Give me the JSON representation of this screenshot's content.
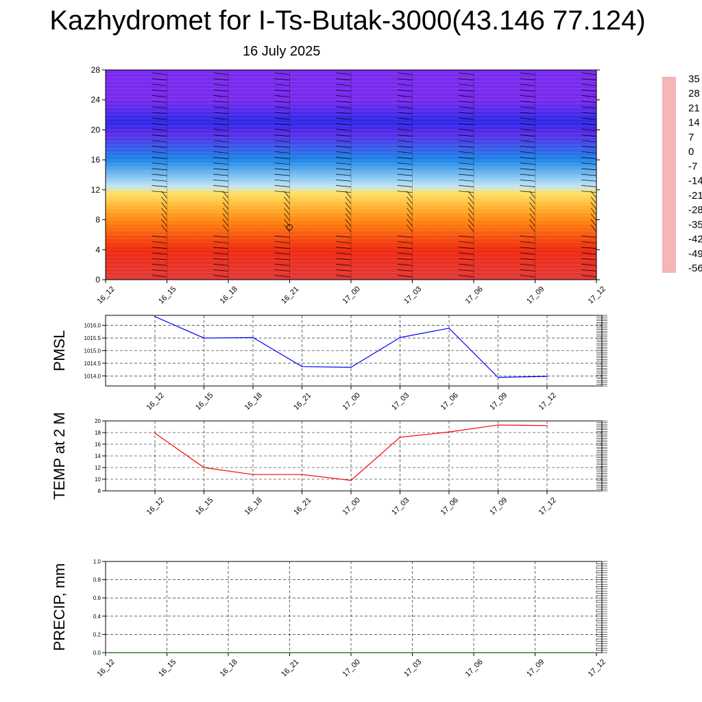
{
  "title": "Kazhydromet for I-Ts-Butak-3000(43.146 77.124)",
  "subtitle": "16 July 2025",
  "colors": {
    "pmsl_line": "#0000ff",
    "temp_line": "#ff0000",
    "precip_line": "#006400",
    "grid": "#000000"
  },
  "chart_data": [
    {
      "id": "wind_temp_profile",
      "type": "heatmap",
      "xlabel": "",
      "ylabel": "",
      "x_ticks": [
        "16_12",
        "16_15",
        "16_18",
        "16_21",
        "17_00",
        "17_03",
        "17_06",
        "17_09",
        "17_12"
      ],
      "y_ticks": [
        "0",
        "4",
        "8",
        "12",
        "16",
        "20",
        "24",
        "28"
      ],
      "ylim": [
        0,
        28
      ],
      "description_units": "height (km) vs time; shading = temperature (C); wind barbs overlaid",
      "colorbar_labels": [
        "35",
        "28",
        "21",
        "14",
        "7",
        "0",
        "-7",
        "-14",
        "-21",
        "-28",
        "-35",
        "-42",
        "-49",
        "-56"
      ],
      "colorbar_colors": [
        "#f4b6b6",
        "#e33a3a",
        "#d80000",
        "#ef2a10",
        "#f85a10",
        "#ff8a10",
        "#ffb21c",
        "#ffe060",
        "#fff6c0",
        "#bfe6f6",
        "#6cc8f2",
        "#16a8ee",
        "#1c86e8",
        "#2a5ee6",
        "#2a2ae8",
        "#5a2ae8",
        "#7a2aee"
      ],
      "temperature_by_height": [
        {
          "height": 0,
          "temp": 30
        },
        {
          "height": 4,
          "temp": 15
        },
        {
          "height": 8,
          "temp": 3
        },
        {
          "height": 11.5,
          "temp": -8
        },
        {
          "height": 12.5,
          "temp": -20
        },
        {
          "height": 16,
          "temp": -36
        },
        {
          "height": 19.5,
          "temp": -56
        },
        {
          "height": 21,
          "temp": -48
        },
        {
          "height": 24,
          "temp": -60
        },
        {
          "height": 28,
          "temp": -60
        }
      ]
    },
    {
      "id": "pmsl",
      "type": "line",
      "ylabel": "PMSL",
      "x": [
        "16_12",
        "16_15",
        "16_18",
        "16_21",
        "17_00",
        "17_03",
        "17_06",
        "17_09",
        "17_12"
      ],
      "y_ticks": [
        "1014.0",
        "1014.5",
        "1015.0",
        "1015.5",
        "1016.0"
      ],
      "ylim": [
        1013.6,
        1016.4
      ],
      "series": [
        {
          "values": [
            1016.35,
            1015.5,
            1015.52,
            1014.37,
            1014.34,
            1015.52,
            1015.89,
            1013.94,
            1013.98
          ]
        }
      ],
      "grid": true
    },
    {
      "id": "temp2m",
      "type": "line",
      "ylabel": "TEMP at 2 M",
      "x": [
        "16_12",
        "16_15",
        "16_18",
        "16_21",
        "17_00",
        "17_03",
        "17_06",
        "17_09",
        "17_12"
      ],
      "y_ticks": [
        "8",
        "10",
        "12",
        "14",
        "16",
        "18",
        "20"
      ],
      "ylim": [
        8,
        20
      ],
      "series": [
        {
          "values": [
            17.9,
            12.0,
            10.8,
            10.8,
            9.8,
            17.2,
            18.1,
            19.3,
            19.2
          ]
        }
      ],
      "grid": true
    },
    {
      "id": "precip",
      "type": "line",
      "ylabel": "PRECIP, mm",
      "x": [
        "16_12",
        "16_15",
        "16_18",
        "16_21",
        "17_00",
        "17_03",
        "17_06",
        "17_09",
        "17_12"
      ],
      "y_ticks": [
        "0.0",
        "0.2",
        "0.4",
        "0.6",
        "0.8",
        "1.0"
      ],
      "ylim": [
        0,
        1
      ],
      "series": [
        {
          "values": [
            0,
            0,
            0,
            0,
            0,
            0,
            0,
            0,
            0
          ]
        }
      ],
      "grid": true
    }
  ]
}
